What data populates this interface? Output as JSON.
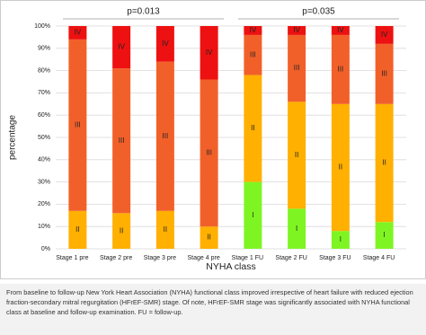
{
  "chart_data": {
    "type": "stacked_bar",
    "y_label": "percentage",
    "x_label": "NYHA class",
    "annotations": [
      "p=0.013",
      "p=0.035"
    ],
    "categories": [
      "Stage 1 pre",
      "Stage 2 pre",
      "Stage 3 pre",
      "Stage 4 pre",
      "Stage 1 FU",
      "Stage 2 FU",
      "Stage 3 FU",
      "Stage 4 FU"
    ],
    "series": [
      {
        "name": "I",
        "color": "#7ef522",
        "values": [
          0,
          0,
          0,
          0,
          30,
          18,
          8,
          12
        ]
      },
      {
        "name": "II",
        "color": "#ffb000",
        "values": [
          17,
          16,
          17,
          10,
          48,
          48,
          57,
          53
        ]
      },
      {
        "name": "III",
        "color": "#f2602a",
        "values": [
          77,
          65,
          67,
          66,
          18,
          30,
          31,
          27
        ]
      },
      {
        "name": "IV",
        "color": "#ee1111",
        "values": [
          6,
          19,
          16,
          24,
          4,
          4,
          4,
          8
        ]
      }
    ],
    "ylim": [
      0,
      100
    ],
    "yticks": [
      {
        "value": 0,
        "label": "0%"
      },
      {
        "value": 10,
        "label": "10%"
      },
      {
        "value": 20,
        "label": "20%"
      },
      {
        "value": 30,
        "label": "30%"
      },
      {
        "value": 40,
        "label": "40%"
      },
      {
        "value": 50,
        "label": "50%"
      },
      {
        "value": 60,
        "label": "60%"
      },
      {
        "value": 70,
        "label": "70%"
      },
      {
        "value": 80,
        "label": "80%"
      },
      {
        "value": 90,
        "label": "90%"
      },
      {
        "value": 100,
        "label": "100%"
      }
    ],
    "grid": true
  },
  "caption": "From baseline to follow-up New York Heart Association (NYHA) functional class improved irrespective of heart failure with reduced ejection fraction-secondary mitral regurgitation (HFrEF-SMR) stage. Of note, HFrEF-SMR stage was significantly associated with NYHA functional class at baseline and follow-up examination. FU = follow-up."
}
